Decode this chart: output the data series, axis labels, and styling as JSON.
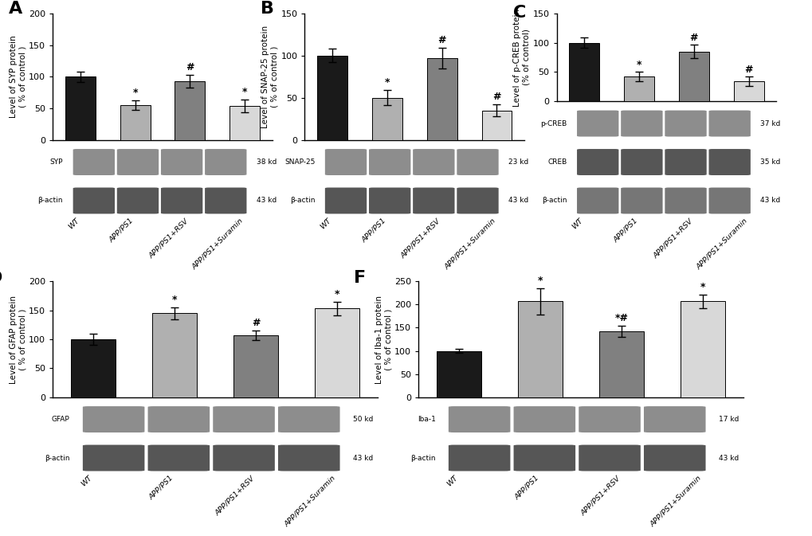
{
  "panels": {
    "A": {
      "ylabel": "Level of SYP protein\n( % of control )",
      "ylim": [
        0,
        200
      ],
      "yticks": [
        0,
        50,
        100,
        150,
        200
      ],
      "values": [
        100,
        55,
        93,
        54
      ],
      "errors": [
        8,
        7,
        10,
        10
      ],
      "annotations": [
        "",
        "*",
        "#",
        "*"
      ],
      "blot_labels": [
        "SYP",
        "β-actin"
      ],
      "blot_kd": [
        "38 kd",
        "43 kd"
      ],
      "panel_label": "A"
    },
    "B": {
      "ylabel": "Level of SNAP-25 protein\n( % of control )",
      "ylim": [
        0,
        150
      ],
      "yticks": [
        0,
        50,
        100,
        150
      ],
      "values": [
        100,
        50,
        97,
        35
      ],
      "errors": [
        8,
        9,
        12,
        7
      ],
      "annotations": [
        "",
        "*",
        "#",
        "#"
      ],
      "blot_labels": [
        "SNAP-25",
        "β-actin"
      ],
      "blot_kd": [
        "23 kd",
        "43 kd"
      ],
      "panel_label": "B"
    },
    "C": {
      "ylabel": "Level of p-CREB protein\n(% of control)",
      "ylim": [
        0,
        150
      ],
      "yticks": [
        0,
        50,
        100,
        150
      ],
      "values": [
        100,
        42,
        85,
        34
      ],
      "errors": [
        9,
        8,
        12,
        8
      ],
      "annotations": [
        "",
        "*",
        "#",
        "#"
      ],
      "blot_labels": [
        "p-CREB",
        "CREB",
        "β-actin"
      ],
      "blot_kd": [
        "37 kd",
        "35 kd",
        "43 kd"
      ],
      "panel_label": "C"
    },
    "D": {
      "ylabel": "Level of GFAP protein\n( % of control )",
      "ylim": [
        0,
        200
      ],
      "yticks": [
        0,
        50,
        100,
        150,
        200
      ],
      "values": [
        100,
        145,
        107,
        153
      ],
      "errors": [
        9,
        10,
        8,
        12
      ],
      "annotations": [
        "",
        "*",
        "#",
        "*"
      ],
      "blot_labels": [
        "GFAP",
        "β-actin"
      ],
      "blot_kd": [
        "50 kd",
        "43 kd"
      ],
      "panel_label": "D"
    },
    "F": {
      "ylabel": "Level of Iba-1 protein\n( % of control )",
      "ylim": [
        0,
        250
      ],
      "yticks": [
        0,
        50,
        100,
        150,
        200,
        250
      ],
      "values": [
        100,
        207,
        143,
        207
      ],
      "errors": [
        5,
        28,
        12,
        15
      ],
      "annotations": [
        "",
        "*",
        "*#",
        "*"
      ],
      "blot_labels": [
        "Iba-1",
        "β-actin"
      ],
      "blot_kd": [
        "17 kd",
        "43 kd"
      ],
      "panel_label": "F"
    }
  },
  "categories": [
    "WT",
    "APP/PS1",
    "APP/PS1+RSV",
    "APP/PS1+Suramin"
  ],
  "bar_colors": [
    "#1a1a1a",
    "#b0b0b0",
    "#808080",
    "#d8d8d8"
  ],
  "background_color": "#ffffff",
  "blot_bg": "#d0d0d0",
  "blot_band_colors": [
    "#505050",
    "#383838",
    "#484848"
  ],
  "blot_band_alpha": [
    0.65,
    0.85,
    0.75
  ]
}
